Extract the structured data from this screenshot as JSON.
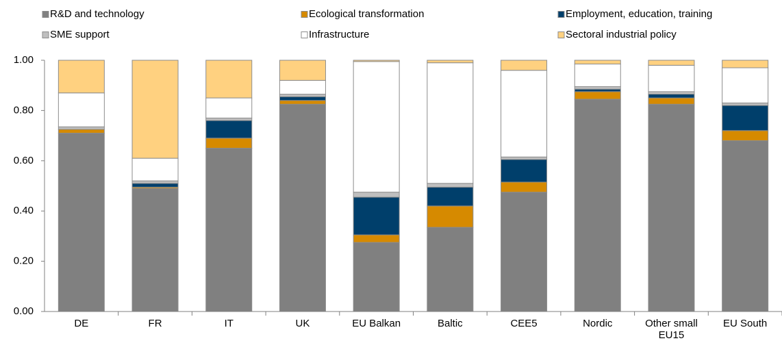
{
  "chart_data": {
    "type": "stacked_bar",
    "categories": [
      "DE",
      "FR",
      "IT",
      "UK",
      "EU Balkan",
      "Baltic",
      "CEE5",
      "Nordic",
      "Other small EU15",
      "EU South"
    ],
    "series": [
      {
        "name": "R&D and technology",
        "color": "#808080",
        "values": [
          0.71,
          0.49,
          0.65,
          0.825,
          0.275,
          0.335,
          0.475,
          0.845,
          0.825,
          0.68
        ]
      },
      {
        "name": "Ecological transformation",
        "color": "#d68a00",
        "values": [
          0.015,
          0.005,
          0.04,
          0.015,
          0.03,
          0.085,
          0.04,
          0.03,
          0.025,
          0.04
        ]
      },
      {
        "name": "Employment, education, training",
        "color": "#003f6b",
        "values": [
          0.0,
          0.015,
          0.07,
          0.015,
          0.15,
          0.075,
          0.09,
          0.01,
          0.015,
          0.1
        ]
      },
      {
        "name": "SME support",
        "color": "#bfbfbf",
        "values": [
          0.01,
          0.01,
          0.01,
          0.01,
          0.02,
          0.015,
          0.01,
          0.01,
          0.01,
          0.01
        ]
      },
      {
        "name": "Infrastructure",
        "color": "#ffffff",
        "values": [
          0.135,
          0.09,
          0.08,
          0.055,
          0.52,
          0.48,
          0.345,
          0.09,
          0.105,
          0.14
        ]
      },
      {
        "name": "Sectoral industrial policy",
        "color": "#ffd180",
        "values": [
          0.13,
          0.39,
          0.15,
          0.08,
          0.005,
          0.01,
          0.04,
          0.015,
          0.02,
          0.03
        ]
      }
    ],
    "ylim": [
      0,
      1
    ],
    "yticks": [
      {
        "value": 0,
        "label": "0.00"
      },
      {
        "value": 0.2,
        "label": "0.20"
      },
      {
        "value": 0.4,
        "label": "0.40"
      },
      {
        "value": 0.6,
        "label": "0.60"
      },
      {
        "value": 0.8,
        "label": "0.80"
      },
      {
        "value": 1,
        "label": "1.00"
      }
    ]
  }
}
